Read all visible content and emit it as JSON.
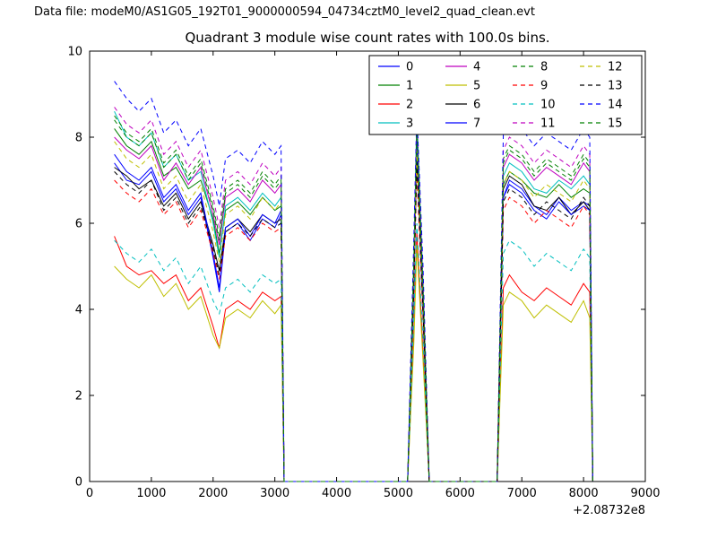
{
  "header": {
    "datafile": "Data file: modeM0/AS1G05_192T01_9000000594_04734cztM0_level2_quad_clean.evt"
  },
  "chart_data": {
    "type": "line",
    "title": "Quadrant 3 module wise count rates with 100.0s bins.",
    "xlabel": "",
    "ylabel": "",
    "x_offset_label": "+2.08732e8",
    "xlim": [
      0,
      9000
    ],
    "ylim": [
      0,
      10
    ],
    "xticks": [
      0,
      1000,
      2000,
      3000,
      4000,
      5000,
      6000,
      7000,
      8000,
      9000
    ],
    "yticks": [
      0,
      2,
      4,
      6,
      8,
      10
    ],
    "grid": false,
    "legend_position": "upper right inside, 4 columns",
    "x": [
      400,
      600,
      800,
      1000,
      1200,
      1400,
      1600,
      1800,
      2000,
      2100,
      2200,
      2400,
      2600,
      2800,
      3000,
      3100,
      3150,
      5150,
      5250,
      5300,
      5400,
      5500,
      6600,
      6700,
      6800,
      7000,
      7200,
      7400,
      7600,
      7800,
      8000,
      8100,
      8150
    ],
    "series": [
      {
        "name": "0",
        "color": "#0000ff",
        "style": "solid",
        "y": [
          7.4,
          7.0,
          6.9,
          7.2,
          6.5,
          6.8,
          6.2,
          6.6,
          5.2,
          4.4,
          5.8,
          6.0,
          5.6,
          6.1,
          5.9,
          6.2,
          0,
          0,
          4.5,
          7.8,
          4.0,
          0,
          0,
          6.6,
          7.0,
          6.8,
          6.4,
          6.2,
          6.6,
          6.3,
          6.5,
          6.4,
          0
        ]
      },
      {
        "name": "1",
        "color": "#008000",
        "style": "solid",
        "y": [
          8.2,
          7.8,
          7.6,
          7.9,
          7.1,
          7.3,
          6.8,
          7.0,
          6.1,
          5.3,
          6.3,
          6.5,
          6.2,
          6.6,
          6.3,
          6.4,
          0,
          0,
          4.8,
          8.0,
          4.2,
          0,
          0,
          6.9,
          7.2,
          7.0,
          6.7,
          6.6,
          6.9,
          6.6,
          6.8,
          6.7,
          0
        ]
      },
      {
        "name": "2",
        "color": "#ff0000",
        "style": "solid",
        "y": [
          5.7,
          5.0,
          4.8,
          4.9,
          4.6,
          4.8,
          4.2,
          4.5,
          3.6,
          3.1,
          4.0,
          4.2,
          4.0,
          4.4,
          4.2,
          4.3,
          0,
          0,
          3.5,
          5.8,
          3.0,
          0,
          0,
          4.5,
          4.8,
          4.4,
          4.2,
          4.5,
          4.3,
          4.1,
          4.6,
          4.4,
          0
        ]
      },
      {
        "name": "3",
        "color": "#00bfbf",
        "style": "solid",
        "y": [
          8.6,
          8.0,
          7.8,
          8.1,
          7.3,
          7.6,
          7.0,
          7.2,
          6.0,
          5.2,
          6.4,
          6.6,
          6.3,
          6.7,
          6.4,
          6.6,
          0,
          0,
          5.0,
          8.6,
          4.5,
          0,
          0,
          7.1,
          7.4,
          7.2,
          6.8,
          6.7,
          7.0,
          6.8,
          7.1,
          6.9,
          0
        ]
      },
      {
        "name": "4",
        "color": "#bf00bf",
        "style": "solid",
        "y": [
          8.0,
          7.7,
          7.5,
          7.8,
          7.0,
          7.4,
          6.9,
          7.3,
          6.2,
          5.5,
          6.6,
          6.8,
          6.5,
          7.0,
          6.7,
          6.9,
          0,
          0,
          5.0,
          8.2,
          4.4,
          0,
          0,
          7.3,
          7.6,
          7.4,
          7.0,
          7.3,
          7.1,
          6.9,
          7.4,
          7.2,
          0
        ]
      },
      {
        "name": "5",
        "color": "#bfbf00",
        "style": "solid",
        "y": [
          5.0,
          4.7,
          4.5,
          4.8,
          4.3,
          4.6,
          4.0,
          4.3,
          3.4,
          3.1,
          3.8,
          4.0,
          3.8,
          4.2,
          3.9,
          4.1,
          0,
          0,
          3.2,
          5.5,
          2.8,
          0,
          0,
          4.1,
          4.4,
          4.2,
          3.8,
          4.1,
          3.9,
          3.7,
          4.2,
          3.8,
          0
        ]
      },
      {
        "name": "6",
        "color": "#000000",
        "style": "solid",
        "y": [
          7.3,
          7.1,
          6.8,
          7.0,
          6.4,
          6.7,
          6.1,
          6.5,
          5.5,
          4.9,
          5.9,
          6.1,
          5.8,
          6.2,
          6.0,
          6.1,
          0,
          0,
          4.6,
          7.6,
          4.0,
          0,
          0,
          6.8,
          7.1,
          6.9,
          6.4,
          6.3,
          6.6,
          6.2,
          6.5,
          6.3,
          0
        ]
      },
      {
        "name": "7",
        "color": "#0000ff",
        "style": "solid",
        "y": [
          7.6,
          7.2,
          7.0,
          7.3,
          6.6,
          6.9,
          6.3,
          6.7,
          5.3,
          4.5,
          5.9,
          6.1,
          5.7,
          6.2,
          6.0,
          6.3,
          0,
          0,
          4.7,
          7.9,
          4.1,
          0,
          0,
          6.6,
          6.9,
          6.7,
          6.3,
          6.1,
          6.5,
          6.2,
          6.4,
          6.3,
          0
        ]
      },
      {
        "name": "8",
        "color": "#008000",
        "style": "dashed",
        "y": [
          8.5,
          8.1,
          7.9,
          8.2,
          7.4,
          7.7,
          7.1,
          7.5,
          6.4,
          5.7,
          6.8,
          7.0,
          6.7,
          7.2,
          6.9,
          7.1,
          0,
          0,
          5.2,
          8.3,
          4.6,
          0,
          0,
          7.5,
          7.8,
          7.6,
          7.2,
          7.5,
          7.3,
          7.1,
          7.6,
          7.4,
          0
        ]
      },
      {
        "name": "9",
        "color": "#ff0000",
        "style": "dashed",
        "y": [
          7.0,
          6.7,
          6.5,
          6.8,
          6.2,
          6.5,
          5.9,
          6.3,
          5.3,
          4.7,
          5.7,
          5.9,
          5.6,
          6.0,
          5.8,
          5.9,
          0,
          0,
          4.4,
          7.2,
          3.8,
          0,
          0,
          6.3,
          6.6,
          6.4,
          6.0,
          6.3,
          6.1,
          5.9,
          6.4,
          6.2,
          0
        ]
      },
      {
        "name": "10",
        "color": "#00bfbf",
        "style": "dashed",
        "y": [
          5.6,
          5.3,
          5.1,
          5.4,
          4.9,
          5.2,
          4.6,
          5.0,
          4.2,
          3.9,
          4.5,
          4.7,
          4.4,
          4.8,
          4.6,
          4.7,
          0,
          0,
          3.8,
          6.0,
          3.3,
          0,
          0,
          5.3,
          5.6,
          5.4,
          5.0,
          5.3,
          5.1,
          4.9,
          5.4,
          5.2,
          0
        ]
      },
      {
        "name": "11",
        "color": "#bf00bf",
        "style": "dashed",
        "y": [
          8.7,
          8.3,
          8.1,
          8.4,
          7.6,
          7.9,
          7.3,
          7.7,
          6.6,
          5.9,
          7.0,
          7.2,
          6.9,
          7.4,
          7.1,
          7.3,
          0,
          0,
          5.4,
          8.5,
          4.8,
          0,
          0,
          7.7,
          8.0,
          7.8,
          7.4,
          7.7,
          7.5,
          7.3,
          7.8,
          7.6,
          0
        ]
      },
      {
        "name": "12",
        "color": "#bfbf00",
        "style": "dashed",
        "y": [
          7.9,
          7.5,
          7.3,
          7.6,
          6.8,
          7.1,
          6.5,
          6.9,
          5.8,
          5.1,
          6.2,
          6.4,
          6.1,
          6.6,
          6.3,
          6.5,
          0,
          0,
          4.9,
          7.7,
          4.3,
          0,
          0,
          6.9,
          7.2,
          7.0,
          6.6,
          6.9,
          6.7,
          6.5,
          7.0,
          6.8,
          0
        ]
      },
      {
        "name": "13",
        "color": "#000000",
        "style": "dashed",
        "y": [
          7.2,
          6.9,
          6.7,
          7.0,
          6.3,
          6.6,
          6.0,
          6.4,
          5.4,
          4.8,
          5.8,
          6.0,
          5.7,
          6.1,
          5.9,
          6.0,
          0,
          0,
          4.5,
          7.4,
          3.9,
          0,
          0,
          6.5,
          6.8,
          6.6,
          6.2,
          6.5,
          6.3,
          6.1,
          6.6,
          6.4,
          0
        ]
      },
      {
        "name": "14",
        "color": "#0000ff",
        "style": "dashed",
        "y": [
          9.3,
          8.9,
          8.6,
          8.9,
          8.1,
          8.4,
          7.8,
          8.2,
          7.1,
          6.4,
          7.5,
          7.7,
          7.4,
          7.9,
          7.6,
          7.8,
          0,
          0,
          5.6,
          8.6,
          5.0,
          0,
          0,
          8.1,
          8.4,
          8.2,
          7.8,
          8.1,
          7.9,
          7.7,
          8.2,
          8.0,
          0
        ]
      },
      {
        "name": "15",
        "color": "#008000",
        "style": "dashed",
        "y": [
          8.4,
          8.0,
          7.8,
          8.1,
          7.3,
          7.6,
          7.0,
          7.4,
          6.3,
          5.6,
          6.7,
          6.9,
          6.6,
          7.1,
          6.8,
          7.0,
          0,
          0,
          5.1,
          8.2,
          4.5,
          0,
          0,
          7.4,
          7.7,
          7.5,
          7.1,
          7.4,
          7.2,
          7.0,
          7.5,
          7.3,
          0
        ]
      }
    ]
  }
}
